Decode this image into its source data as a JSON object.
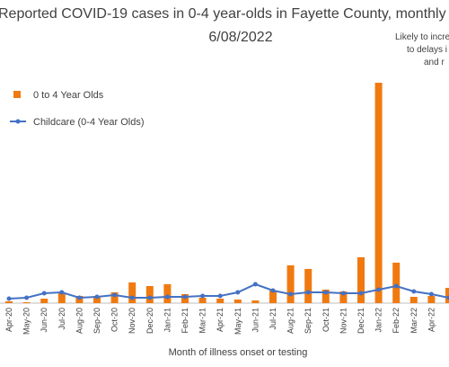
{
  "chart_data": {
    "type": "bar",
    "title": "Reported COVID-19 cases in 0-4 year-olds in Fayette County, monthly",
    "subtitle": "6/08/2022",
    "annotations": [
      "Likely to incre",
      "to delays i",
      "and r"
    ],
    "x_label": "Month of illness onset or testing",
    "categories": [
      "Apr-20",
      "May-20",
      "Jun-20",
      "Jul-20",
      "Aug-20",
      "Sep-20",
      "Oct-20",
      "Nov-20",
      "Dec-20",
      "Jan-21",
      "Feb-21",
      "Mar-21",
      "Apr-21",
      "May-21",
      "Jun-21",
      "Jul-21",
      "Aug-21",
      "Sep-21",
      "Oct-21",
      "Nov-21",
      "Dec-21",
      "Jan-22",
      "Feb-22",
      "Mar-22",
      "Apr-22",
      null
    ],
    "series": [
      {
        "name": "0 to 4 Year Olds",
        "type": "bar",
        "color": "#f07a10",
        "values": [
          2,
          1,
          5,
          12,
          8,
          8,
          12,
          23,
          19,
          21,
          10,
          6,
          5,
          4,
          3,
          14,
          42,
          38,
          15,
          13,
          51,
          245,
          45,
          7,
          8,
          17
        ]
      },
      {
        "name": "Childcare (0-4 Year Olds)",
        "type": "line",
        "color": "#4472c4",
        "values": [
          5,
          6,
          11,
          12,
          6,
          7,
          9,
          6,
          6,
          7,
          7,
          8,
          8,
          12,
          21,
          14,
          10,
          12,
          12,
          11,
          11,
          15,
          19,
          13,
          10,
          6
        ]
      }
    ],
    "ylim": [
      0,
      250
    ],
    "legend": "upper left"
  }
}
